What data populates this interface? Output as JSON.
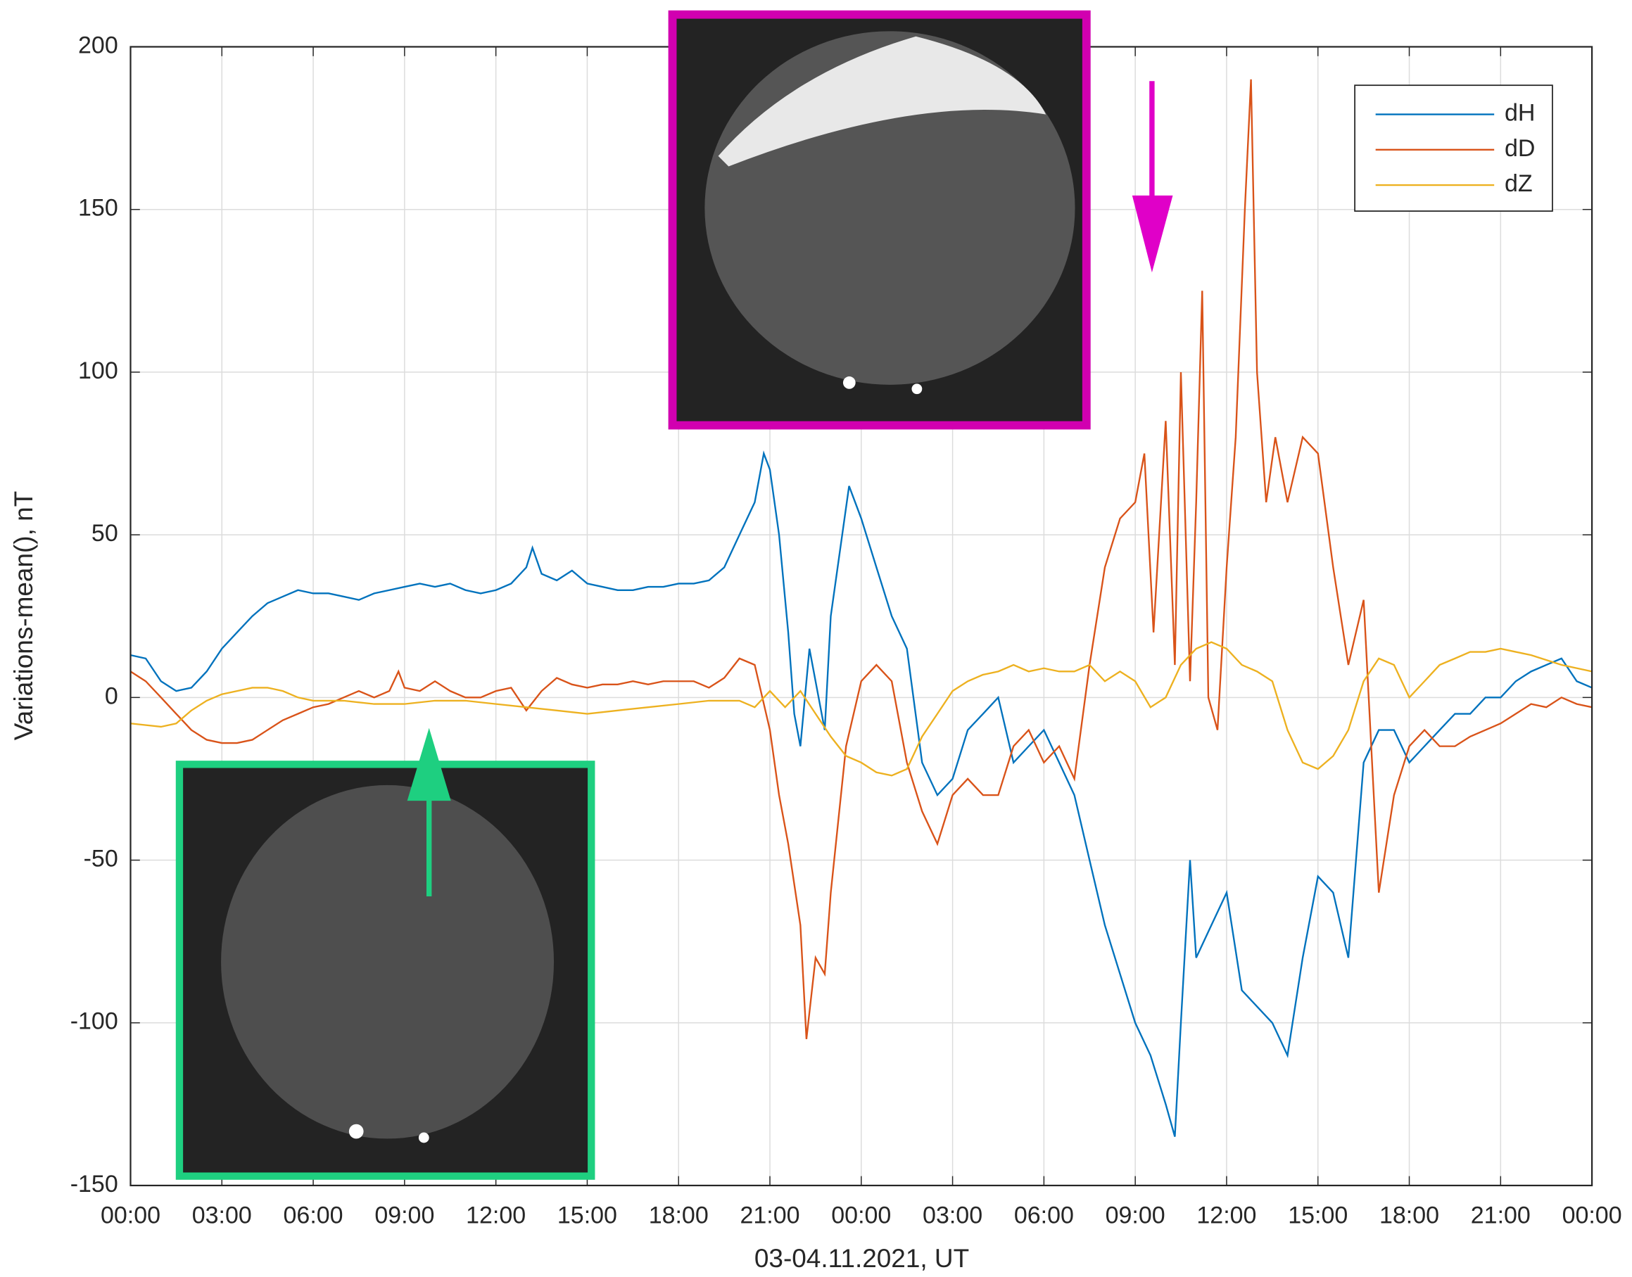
{
  "chart_data": {
    "type": "line",
    "xlabel": "03-04.11.2021, UT",
    "ylabel": "Variations-mean(), nT",
    "xlim": [
      0,
      48
    ],
    "ylim": [
      -150,
      200
    ],
    "xticks": [
      {
        "value": 0,
        "label": "00:00"
      },
      {
        "value": 3,
        "label": "03:00"
      },
      {
        "value": 6,
        "label": "06:00"
      },
      {
        "value": 9,
        "label": "09:00"
      },
      {
        "value": 12,
        "label": "12:00"
      },
      {
        "value": 15,
        "label": "15:00"
      },
      {
        "value": 18,
        "label": "18:00"
      },
      {
        "value": 21,
        "label": "21:00"
      },
      {
        "value": 24,
        "label": "00:00"
      },
      {
        "value": 27,
        "label": "03:00"
      },
      {
        "value": 30,
        "label": "06:00"
      },
      {
        "value": 33,
        "label": "09:00"
      },
      {
        "value": 36,
        "label": "12:00"
      },
      {
        "value": 39,
        "label": "15:00"
      },
      {
        "value": 42,
        "label": "18:00"
      },
      {
        "value": 45,
        "label": "21:00"
      },
      {
        "value": 48,
        "label": "00:00"
      }
    ],
    "yticks": [
      200,
      150,
      100,
      50,
      0,
      -50,
      -100,
      -150
    ],
    "grid": true,
    "legend": "upper right",
    "series": [
      {
        "name": "dH",
        "color": "#0072bd",
        "x": [
          0,
          0.5,
          1,
          1.5,
          2,
          2.5,
          3,
          3.5,
          4,
          4.5,
          5,
          5.5,
          6,
          6.5,
          7,
          7.5,
          8,
          8.5,
          9,
          9.5,
          10,
          10.5,
          11,
          11.5,
          12,
          12.5,
          13,
          13.2,
          13.5,
          14,
          14.5,
          15,
          15.5,
          16,
          16.5,
          17,
          17.5,
          18,
          18.5,
          19,
          19.5,
          20,
          20.5,
          20.8,
          21,
          21.3,
          21.6,
          21.8,
          22,
          22.3,
          22.6,
          22.8,
          23,
          23.3,
          23.6,
          24,
          24.5,
          25,
          25.5,
          26,
          26.5,
          27,
          27.5,
          28,
          28.5,
          29,
          29.5,
          30,
          30.5,
          31,
          31.5,
          32,
          32.5,
          33,
          33.5,
          34,
          34.3,
          34.5,
          34.8,
          35,
          35.5,
          36,
          36.5,
          37,
          37.5,
          38,
          38.5,
          39,
          39.5,
          40,
          40.5,
          41,
          41.5,
          42,
          42.5,
          43,
          43.5,
          44,
          44.5,
          45,
          45.5,
          46,
          46.5,
          47,
          47.5,
          48
        ],
        "values": [
          13,
          12,
          5,
          2,
          3,
          8,
          15,
          20,
          25,
          29,
          31,
          33,
          32,
          32,
          31,
          30,
          32,
          33,
          34,
          35,
          34,
          35,
          33,
          32,
          33,
          35,
          40,
          46,
          38,
          36,
          39,
          35,
          34,
          33,
          33,
          34,
          34,
          35,
          35,
          36,
          40,
          50,
          60,
          75,
          70,
          50,
          20,
          -5,
          -15,
          15,
          0,
          -10,
          25,
          45,
          65,
          55,
          40,
          25,
          15,
          -20,
          -30,
          -25,
          -10,
          -5,
          0,
          -20,
          -15,
          -10,
          -20,
          -30,
          -50,
          -70,
          -85,
          -100,
          -110,
          -125,
          -135,
          -100,
          -50,
          -80,
          -70,
          -60,
          -90,
          -95,
          -100,
          -110,
          -80,
          -55,
          -60,
          -80,
          -20,
          -10,
          -10,
          -20,
          -15,
          -10,
          -5,
          -5,
          0,
          0,
          5,
          8,
          10,
          12,
          5,
          3
        ]
      },
      {
        "name": "dD",
        "color": "#d95319",
        "x": [
          0,
          0.5,
          1,
          1.5,
          2,
          2.5,
          3,
          3.5,
          4,
          4.5,
          5,
          5.5,
          6,
          6.5,
          7,
          7.5,
          8,
          8.5,
          8.8,
          9,
          9.5,
          10,
          10.5,
          11,
          11.5,
          12,
          12.5,
          13,
          13.5,
          14,
          14.5,
          15,
          15.5,
          16,
          16.5,
          17,
          17.5,
          18,
          18.5,
          19,
          19.5,
          20,
          20.5,
          21,
          21.3,
          21.6,
          22,
          22.2,
          22.5,
          22.8,
          23,
          23.5,
          24,
          24.5,
          25,
          25.5,
          26,
          26.5,
          27,
          27.5,
          28,
          28.5,
          29,
          29.5,
          30,
          30.5,
          31,
          31.5,
          32,
          32.5,
          33,
          33.3,
          33.6,
          34,
          34.3,
          34.5,
          34.8,
          35,
          35.2,
          35.4,
          35.7,
          36,
          36.3,
          36.6,
          36.8,
          37,
          37.3,
          37.6,
          38,
          38.5,
          39,
          39.5,
          40,
          40.5,
          41,
          41.5,
          42,
          42.5,
          43,
          43.5,
          44,
          44.5,
          45,
          45.5,
          46,
          46.5,
          47,
          47.5,
          48
        ],
        "values": [
          8,
          5,
          0,
          -5,
          -10,
          -13,
          -14,
          -14,
          -13,
          -10,
          -7,
          -5,
          -3,
          -2,
          0,
          2,
          0,
          2,
          8,
          3,
          2,
          5,
          2,
          0,
          0,
          2,
          3,
          -4,
          2,
          6,
          4,
          3,
          4,
          4,
          5,
          4,
          5,
          5,
          5,
          3,
          6,
          12,
          10,
          -10,
          -30,
          -45,
          -70,
          -105,
          -80,
          -85,
          -60,
          -15,
          5,
          10,
          5,
          -20,
          -35,
          -45,
          -30,
          -25,
          -30,
          -30,
          -15,
          -10,
          -20,
          -15,
          -25,
          10,
          40,
          55,
          60,
          75,
          20,
          85,
          10,
          100,
          5,
          60,
          125,
          0,
          -10,
          40,
          80,
          150,
          190,
          100,
          60,
          80,
          60,
          80,
          75,
          40,
          10,
          30,
          -60,
          -30,
          -15,
          -10,
          -15,
          -15,
          -12,
          -10,
          -8,
          -5,
          -2,
          -3,
          0,
          -2,
          -3
        ]
      },
      {
        "name": "dZ",
        "color": "#edb120",
        "x": [
          0,
          1,
          1.5,
          2,
          2.5,
          3,
          3.5,
          4,
          4.5,
          5,
          5.5,
          6,
          7,
          8,
          9,
          10,
          11,
          12,
          13,
          14,
          15,
          16,
          17,
          18,
          19,
          20,
          20.5,
          21,
          21.5,
          22,
          22.5,
          23,
          23.5,
          24,
          24.5,
          25,
          25.5,
          26,
          26.5,
          27,
          27.5,
          28,
          28.5,
          29,
          29.5,
          30,
          30.5,
          31,
          31.5,
          32,
          32.5,
          33,
          33.5,
          34,
          34.5,
          35,
          35.5,
          36,
          36.5,
          37,
          37.5,
          38,
          38.5,
          39,
          39.5,
          40,
          40.5,
          41,
          41.5,
          42,
          42.5,
          43,
          43.5,
          44,
          44.5,
          45,
          45.5,
          46,
          47,
          48
        ],
        "values": [
          -8,
          -9,
          -8,
          -4,
          -1,
          1,
          2,
          3,
          3,
          2,
          0,
          -1,
          -1,
          -2,
          -2,
          -1,
          -1,
          -2,
          -3,
          -4,
          -5,
          -4,
          -3,
          -2,
          -1,
          -1,
          -3,
          2,
          -3,
          2,
          -5,
          -12,
          -18,
          -20,
          -23,
          -24,
          -22,
          -12,
          -5,
          2,
          5,
          7,
          8,
          10,
          8,
          9,
          8,
          8,
          10,
          5,
          8,
          5,
          -3,
          0,
          10,
          15,
          17,
          15,
          10,
          8,
          5,
          -10,
          -20,
          -22,
          -18,
          -10,
          5,
          12,
          10,
          0,
          5,
          10,
          12,
          14,
          14,
          15,
          14,
          13,
          10,
          8
        ]
      }
    ]
  }
}
